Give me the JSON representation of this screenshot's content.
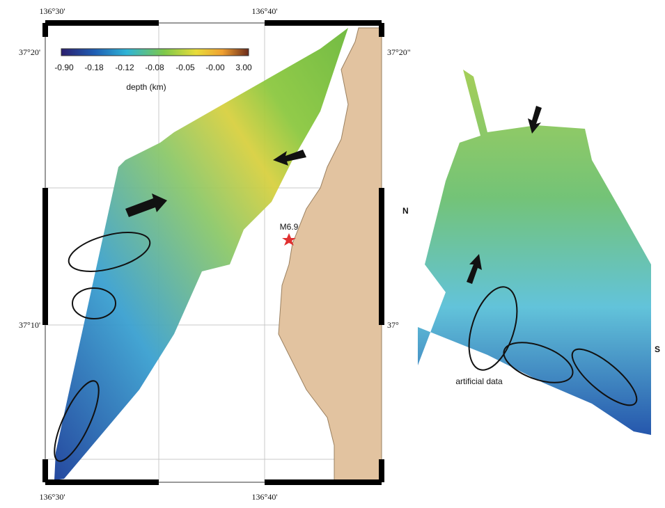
{
  "left_map": {
    "top_lon_labels": [
      "136°30'",
      "136°40'"
    ],
    "bottom_lon_labels": [
      "136°30'",
      "136°40'"
    ],
    "left_lat_labels": [
      "37°20'",
      "37°10'"
    ],
    "right_lat_labels": [
      "37°20\"",
      "37°"
    ],
    "colorbar": {
      "tick_labels": [
        "-0.90",
        "-0.18",
        "-0.12",
        "-0.08",
        "-0.05",
        "-0.00",
        "3.00"
      ],
      "label": "depth (km)"
    },
    "epicenter_label": "M6.9"
  },
  "right_map": {
    "north_label": "N",
    "south_label": "S",
    "annotation": "artificial data"
  }
}
